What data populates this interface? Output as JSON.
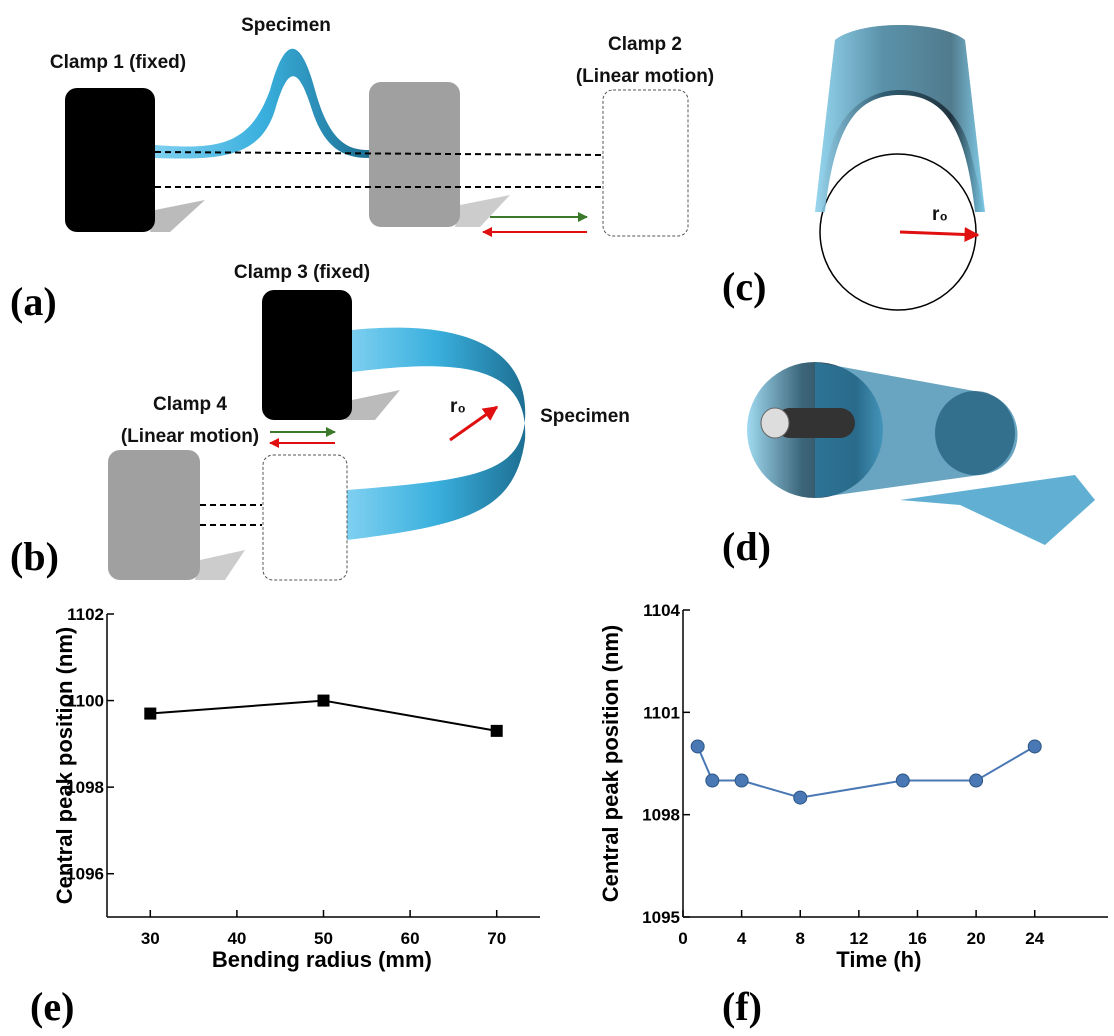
{
  "diagram": {
    "a": {
      "panel": "(a)",
      "specimen": "Specimen",
      "clamp1": "Clamp 1 (fixed)",
      "clamp2": "Clamp 2",
      "clamp2_motion": "(Linear motion)"
    },
    "b": {
      "panel": "(b)",
      "clamp3": "Clamp 3 (fixed)",
      "clamp4": "Clamp 4",
      "clamp4_motion": "(Linear motion)",
      "radius": "r₀",
      "specimen": "Specimen"
    },
    "c": {
      "panel": "(c)",
      "radius": "r₀"
    },
    "d": {
      "panel": "(d)"
    }
  },
  "chart_data": [
    {
      "type": "line",
      "panel": "(e)",
      "marker": "square",
      "color": "#000000",
      "x_label": "Bending radius (mm)",
      "y_label": "Central peak position (nm)",
      "x": [
        30,
        50,
        70
      ],
      "values": [
        1099.7,
        1100.0,
        1099.3
      ],
      "xlim": [
        25,
        75
      ],
      "xticks": [
        30,
        40,
        50,
        60,
        70
      ],
      "ylim": [
        1095,
        1102
      ],
      "yticks": [
        1096,
        1098,
        1100,
        1102
      ]
    },
    {
      "type": "line",
      "panel": "(f)",
      "marker": "circle",
      "color": "#4a78b5",
      "x_label": "Time (h)",
      "y_label": "Central peak position (nm)",
      "x": [
        1,
        2,
        4,
        8,
        15,
        20,
        24
      ],
      "values": [
        1100.0,
        1099.0,
        1099.0,
        1098.5,
        1099.0,
        1099.0,
        1100.0
      ],
      "xlim": [
        0,
        29
      ],
      "xticks": [
        0,
        4,
        8,
        12,
        16,
        20,
        24
      ],
      "ylim": [
        1095,
        1104
      ],
      "yticks": [
        1095,
        1098,
        1101,
        1104
      ]
    }
  ]
}
